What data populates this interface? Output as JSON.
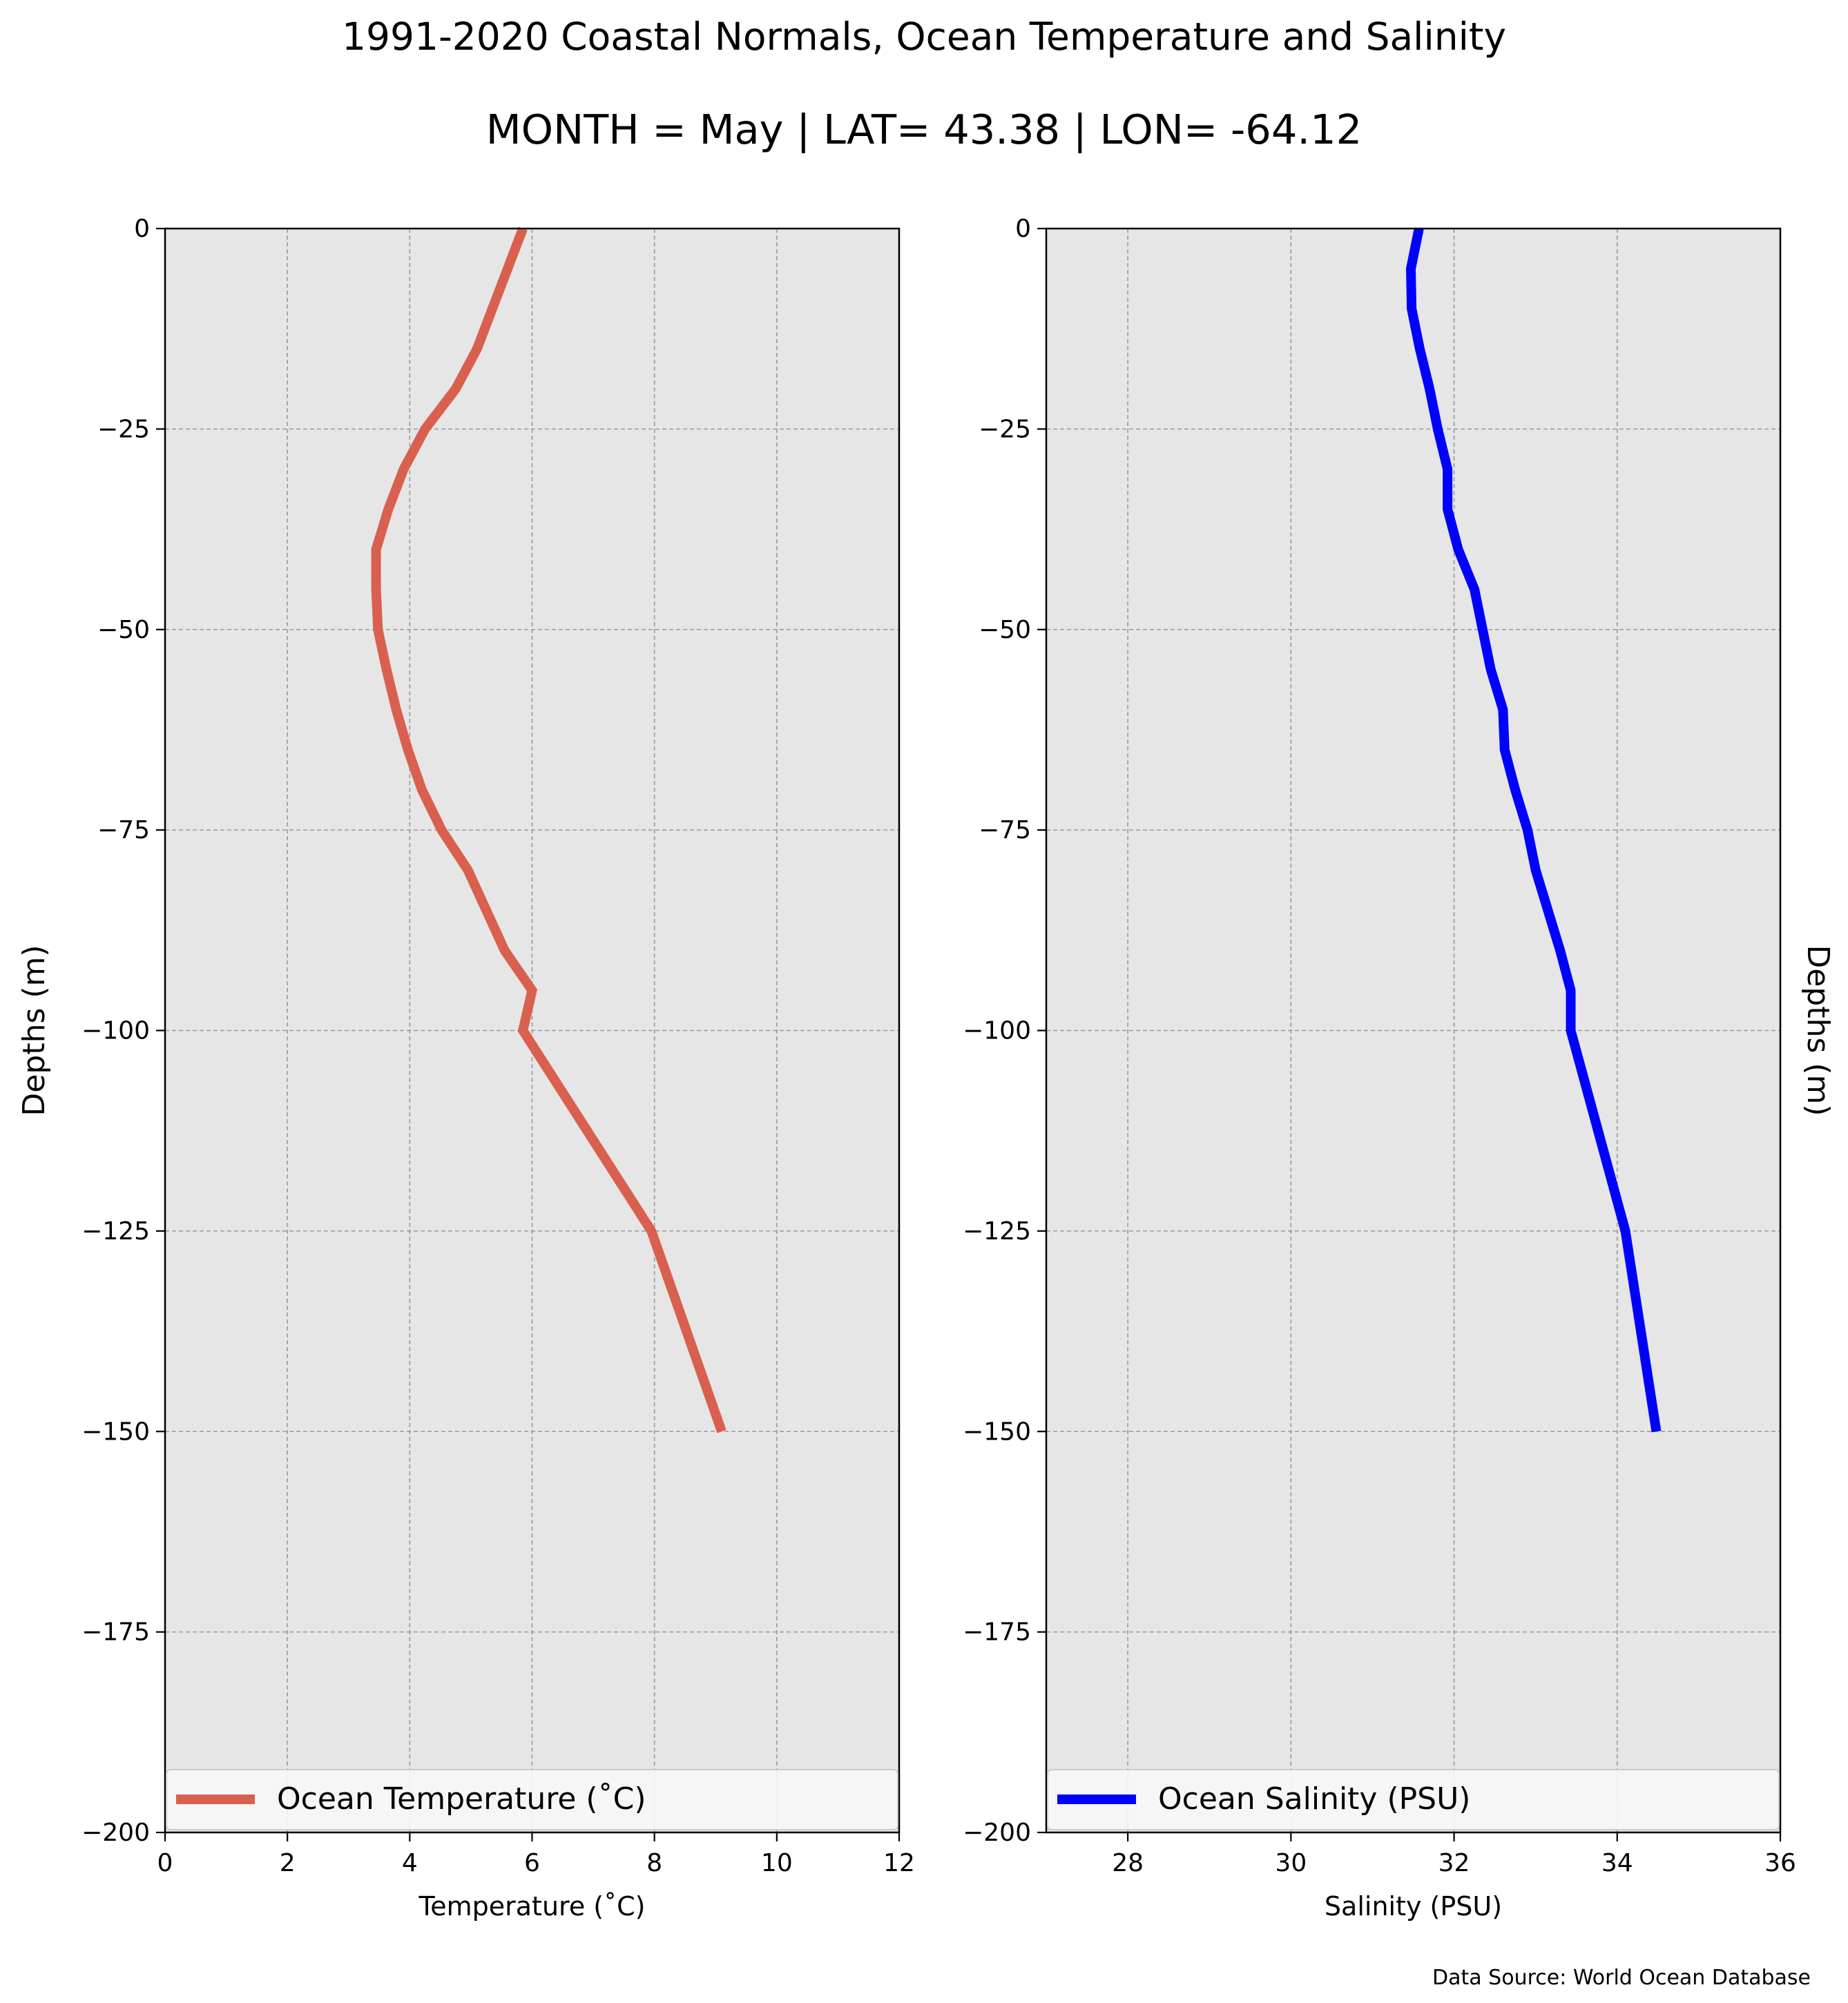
{
  "title": "1991-2020 Coastal Normals, Ocean Temperature and Salinity",
  "subtitle": "MONTH = May | LAT= 43.38 | LON= -64.12",
  "source": "Data Source: World Ocean Database",
  "colors": {
    "temperature": "#d9604e",
    "salinity": "#0000ff",
    "axes_bg": "#e6e6e6",
    "grid": "#999999"
  },
  "chart_data": [
    {
      "type": "line",
      "xlabel": "Temperature ($^\\circ$C)",
      "xlabel_display": "Temperature (˚C)",
      "ylabel": "Depths (m)",
      "xlim": [
        0,
        12
      ],
      "ylim": [
        -200,
        0
      ],
      "xticks": [
        0,
        2,
        4,
        6,
        8,
        10,
        12
      ],
      "xtick_labels": [
        "0",
        "2",
        "4",
        "6",
        "8",
        "10",
        "12"
      ],
      "yticks": [
        0,
        -25,
        -50,
        -75,
        -100,
        -125,
        -150,
        -175,
        -200
      ],
      "ytick_labels": [
        "0",
        "−25",
        "−50",
        "−75",
        "−100",
        "−125",
        "−150",
        "−175",
        "−200"
      ],
      "grid": true,
      "legend_position": "bottom",
      "series": [
        {
          "name": "Ocean Temperature (˚C)",
          "color": "#d9604e",
          "depth": [
            0,
            -5,
            -10,
            -15,
            -20,
            -25,
            -30,
            -35,
            -40,
            -45,
            -50,
            -55,
            -60,
            -65,
            -70,
            -75,
            -80,
            -85,
            -90,
            -95,
            -100,
            -125,
            -150
          ],
          "values": [
            5.85,
            5.6,
            5.35,
            5.1,
            4.75,
            4.25,
            3.9,
            3.65,
            3.45,
            3.45,
            3.48,
            3.62,
            3.78,
            3.97,
            4.2,
            4.52,
            4.95,
            5.25,
            5.55,
            6.0,
            5.85,
            7.95,
            9.1
          ]
        }
      ]
    },
    {
      "type": "line",
      "xlabel": "Salinity (PSU)",
      "ylabel": "Depths (m)",
      "xlim": [
        27,
        36
      ],
      "ylim": [
        -200,
        0
      ],
      "xticks": [
        28,
        30,
        32,
        34,
        36
      ],
      "xtick_labels": [
        "28",
        "30",
        "32",
        "34",
        "36"
      ],
      "yticks": [
        0,
        -25,
        -50,
        -75,
        -100,
        -125,
        -150,
        -175,
        -200
      ],
      "ytick_labels": [
        "0",
        "−25",
        "−50",
        "−75",
        "−100",
        "−125",
        "−150",
        "−175",
        "−200"
      ],
      "grid": true,
      "legend_position": "bottom",
      "series": [
        {
          "name": "Ocean Salinity (PSU)",
          "color": "#0000ff",
          "depth": [
            0,
            -5,
            -10,
            -15,
            -20,
            -25,
            -30,
            -35,
            -40,
            -45,
            -50,
            -55,
            -60,
            -65,
            -70,
            -75,
            -80,
            -85,
            -90,
            -95,
            -100,
            -125,
            -150
          ],
          "values": [
            31.57,
            31.47,
            31.48,
            31.58,
            31.7,
            31.8,
            31.92,
            31.92,
            32.05,
            32.25,
            32.35,
            32.45,
            32.6,
            32.62,
            32.75,
            32.9,
            33.0,
            33.15,
            33.3,
            33.43,
            33.43,
            34.1,
            34.48
          ]
        }
      ]
    }
  ]
}
